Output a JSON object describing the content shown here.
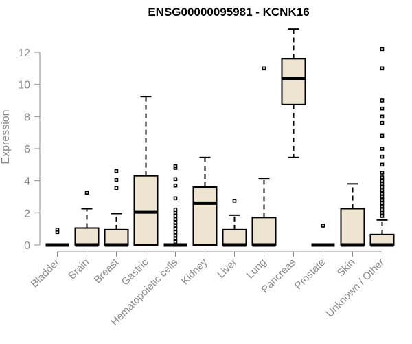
{
  "chart_data": {
    "type": "boxplot",
    "title": "ENSG00000095981 - KCNK16",
    "xlabel": "",
    "ylabel": "Expression",
    "ylim": [
      0,
      13.5
    ],
    "yticks": [
      0,
      2,
      4,
      6,
      8,
      10,
      12
    ],
    "categories": [
      "Bladder",
      "Brain",
      "Breast",
      "Gastric",
      "Hematopoietic cells",
      "Kidney",
      "Liver",
      "Lung",
      "Pancreas",
      "Prostate",
      "Skin",
      "Unknown / Other"
    ],
    "box_color": "#ede5cf",
    "boxes": [
      {
        "q1": 0,
        "median": 0,
        "q3": 0,
        "whisker_low": 0,
        "whisker_high": 0,
        "outliers": [
          0.8,
          0.95
        ]
      },
      {
        "q1": 0,
        "median": 0,
        "q3": 1.05,
        "whisker_low": 0,
        "whisker_high": 2.25,
        "outliers": [
          3.25
        ]
      },
      {
        "q1": 0,
        "median": 0,
        "q3": 0.95,
        "whisker_low": 0,
        "whisker_high": 1.95,
        "outliers": [
          3.55,
          4.05,
          4.6
        ]
      },
      {
        "q1": 0,
        "median": 2.05,
        "q3": 4.3,
        "whisker_low": 0,
        "whisker_high": 9.25,
        "outliers": []
      },
      {
        "q1": 0,
        "median": 0,
        "q3": 0,
        "whisker_low": 0,
        "whisker_high": 0,
        "outliers": [
          0.2,
          0.4,
          0.6,
          0.8,
          1.0,
          1.2,
          1.4,
          1.6,
          1.8,
          2.0,
          2.2,
          2.9,
          3.7,
          4.1,
          4.8,
          4.9
        ]
      },
      {
        "q1": 0,
        "median": 2.6,
        "q3": 3.6,
        "whisker_low": 0,
        "whisker_high": 5.45,
        "outliers": []
      },
      {
        "q1": 0,
        "median": 0,
        "q3": 0.95,
        "whisker_low": 0,
        "whisker_high": 1.85,
        "outliers": [
          2.75
        ]
      },
      {
        "q1": 0,
        "median": 0,
        "q3": 1.7,
        "whisker_low": 0,
        "whisker_high": 4.15,
        "outliers": [
          11.0
        ]
      },
      {
        "q1": 8.75,
        "median": 10.35,
        "q3": 11.6,
        "whisker_low": 5.45,
        "whisker_high": 13.45,
        "outliers": []
      },
      {
        "q1": 0,
        "median": 0,
        "q3": 0,
        "whisker_low": 0,
        "whisker_high": 0,
        "outliers": [
          1.2
        ]
      },
      {
        "q1": 0,
        "median": 0,
        "q3": 2.25,
        "whisker_low": 0,
        "whisker_high": 3.8,
        "outliers": []
      },
      {
        "q1": 0,
        "median": 0,
        "q3": 0.65,
        "whisker_low": 0,
        "whisker_high": 1.55,
        "outliers": [
          1.8,
          2.0,
          2.2,
          2.4,
          2.6,
          2.8,
          3.0,
          3.2,
          3.4,
          3.6,
          3.8,
          4.0,
          4.2,
          4.5,
          5.0,
          5.5,
          6.0,
          6.8,
          7.6,
          8.0,
          8.5,
          9.0,
          11.0,
          12.2
        ]
      }
    ]
  }
}
